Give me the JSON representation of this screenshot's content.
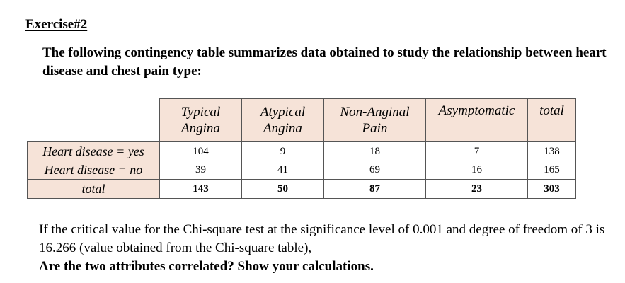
{
  "title": "Exercise#2",
  "intro": "The following contingency table summarizes data obtained to study the relationship between heart disease and chest pain type:",
  "table": {
    "headers": [
      {
        "line1": "Typical",
        "line2": "Angina"
      },
      {
        "line1": "Atypical",
        "line2": "Angina"
      },
      {
        "line1": "Non-Anginal",
        "line2": "Pain"
      },
      {
        "line1": "Asymptomatic",
        "line2": ""
      },
      {
        "line1": "total",
        "line2": ""
      }
    ],
    "rows": [
      {
        "label": "Heart disease = yes",
        "values": [
          "104",
          "9",
          "18",
          "7",
          "138"
        ]
      },
      {
        "label": "Heart disease = no",
        "values": [
          "39",
          "41",
          "69",
          "16",
          "165"
        ]
      },
      {
        "label": "total",
        "values": [
          "143",
          "50",
          "87",
          "23",
          "303"
        ]
      }
    ]
  },
  "question": {
    "text": "If the critical value for the Chi-square test at the significance level of 0.001 and degree of freedom of 3 is 16.266 (value obtained from the Chi-square table),",
    "bold": "Are the two attributes correlated? Show your calculations."
  }
}
